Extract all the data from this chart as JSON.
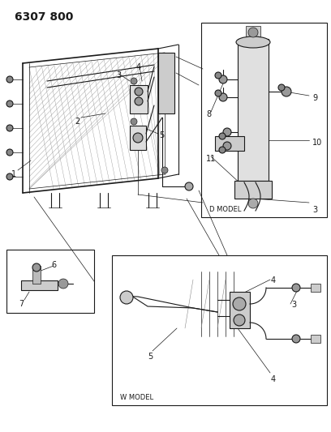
{
  "title": "6307 800",
  "bg_color": "#ffffff",
  "title_fontsize": 10,
  "title_weight": "bold",
  "fig_width": 4.08,
  "fig_height": 5.33,
  "dpi": 100,
  "line_color": "#1a1a1a",
  "gray_light": "#c8c8c8",
  "gray_med": "#a0a0a0",
  "gray_dark": "#707070",
  "label_fontsize": 7,
  "d_model_text": "D MODEL",
  "w_model_text": "W MODEL"
}
